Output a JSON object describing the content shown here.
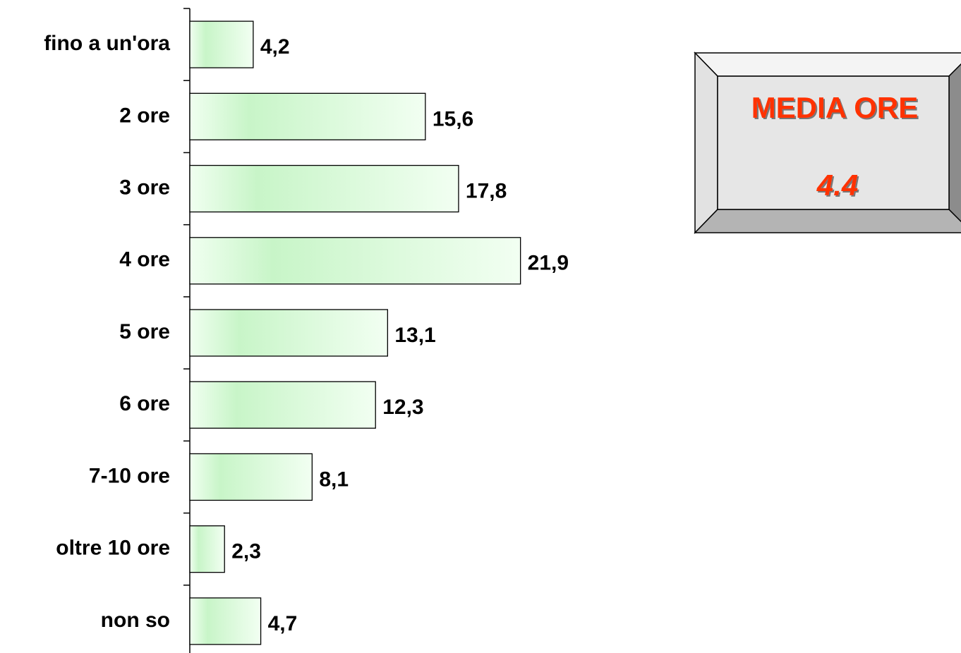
{
  "chart_data": {
    "type": "bar",
    "orientation": "horizontal",
    "categories": [
      "fino a un'ora",
      "2 ore",
      "3 ore",
      "4 ore",
      "5 ore",
      "6 ore",
      "7-10 ore",
      "oltre 10 ore",
      "non so"
    ],
    "values": [
      4.2,
      15.6,
      17.8,
      21.9,
      13.1,
      12.3,
      8.1,
      2.3,
      4.7
    ],
    "value_labels": [
      "4,2",
      "15,6",
      "17,8",
      "21,9",
      "13,1",
      "12,3",
      "8,1",
      "2,3",
      "4,7"
    ],
    "color": "#c8f5c8",
    "annotation": {
      "title": "MEDIA ORE",
      "value": 4.4,
      "color": "#ff3300"
    }
  }
}
